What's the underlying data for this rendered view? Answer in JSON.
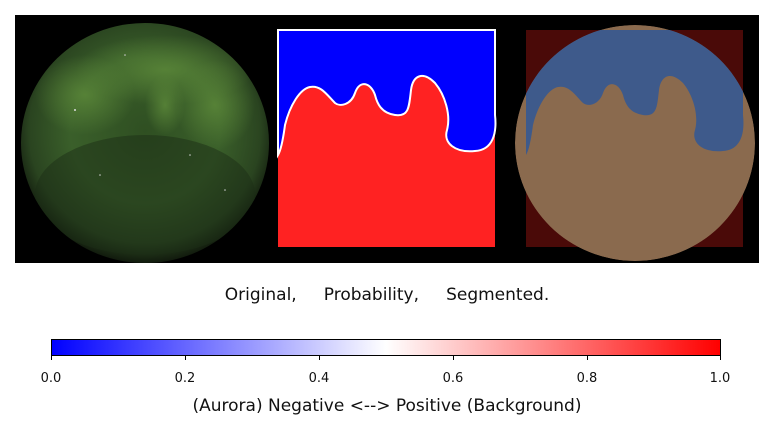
{
  "panels": {
    "left_name": "original-sky-image",
    "middle_name": "probability-map",
    "right_name": "segmented-overlay"
  },
  "caption": {
    "original": "Original,",
    "probability": "Probability,",
    "segmented": "Segmented."
  },
  "colorbar": {
    "ticks": [
      "0.0",
      "0.2",
      "0.4",
      "0.6",
      "0.8",
      "1.0"
    ],
    "label": "(Aurora) Negative <--> Positive (Background)",
    "min_color": "#0000ff",
    "mid_color": "#ffffff",
    "max_color": "#ff0000"
  },
  "colors": {
    "aurora_green": "#3f6a2a",
    "prob_blue": "#0000ff",
    "prob_red": "#ff2020"
  }
}
